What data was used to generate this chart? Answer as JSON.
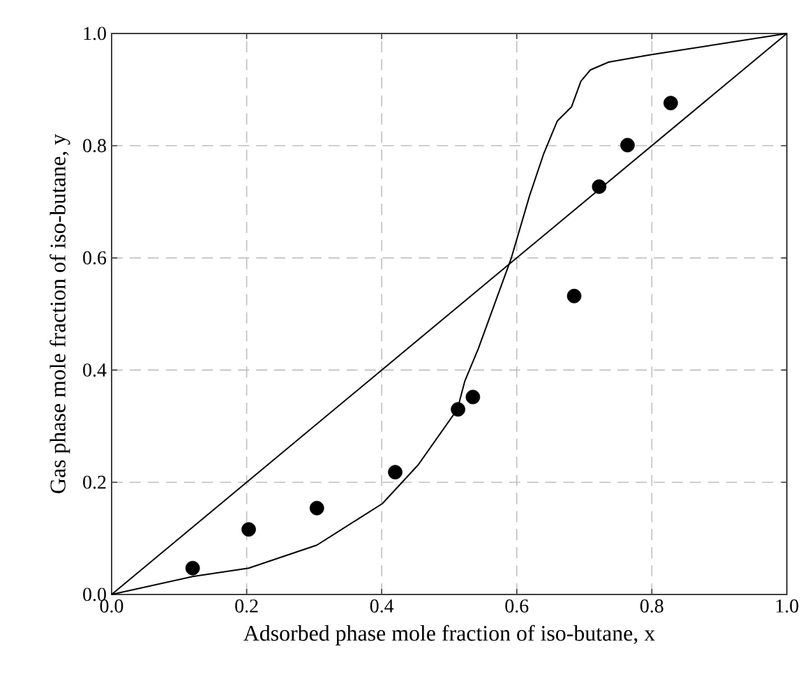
{
  "chart_data": {
    "type": "scatter",
    "xlabel": "Adsorbed phase mole fraction of iso-butane, x",
    "ylabel": "Gas phase mole fraction of iso-butane, y",
    "xlim": [
      0,
      1
    ],
    "ylim": [
      0,
      1
    ],
    "xticks": [
      {
        "value": 0,
        "label": "0.0"
      },
      0.2,
      0.4,
      0.6,
      0.8,
      {
        "value": 1,
        "label": "1.0"
      }
    ],
    "yticks": [
      {
        "value": 0,
        "label": "0.0"
      },
      0.2,
      0.4,
      0.6,
      0.8,
      {
        "value": 1,
        "label": "1.0"
      }
    ],
    "grid": true,
    "series": [
      {
        "type": "line",
        "color": "#000000",
        "marker": "none",
        "x": [
          0,
          1
        ],
        "values": [
          0,
          1
        ]
      },
      {
        "type": "line",
        "color": "#000000",
        "marker": "none",
        "x": [
          0,
          0.12,
          0.203,
          0.304,
          0.401,
          0.454,
          0.512,
          0.523,
          0.543,
          0.592,
          0.619,
          0.64,
          0.66,
          0.681,
          0.695,
          0.709,
          0.736,
          0.798,
          1.0
        ],
        "values": [
          0,
          0.032,
          0.047,
          0.088,
          0.162,
          0.231,
          0.33,
          0.38,
          0.438,
          0.6,
          0.711,
          0.786,
          0.844,
          0.869,
          0.915,
          0.935,
          0.949,
          0.962,
          1.0
        ]
      },
      {
        "color": "#000000",
        "marker": "circle",
        "x": [
          0.12,
          0.203,
          0.304,
          0.42,
          0.513,
          0.535,
          0.685,
          0.722,
          0.764,
          0.828
        ],
        "values": [
          0.047,
          0.116,
          0.154,
          0.218,
          0.33,
          0.352,
          0.532,
          0.727,
          0.801,
          0.876
        ]
      }
    ]
  }
}
